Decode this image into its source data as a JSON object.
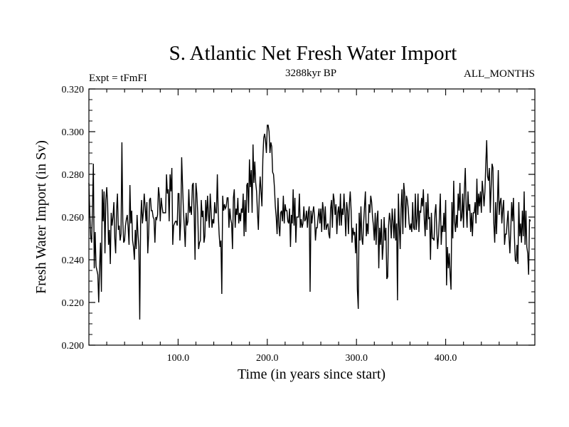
{
  "chart_data": {
    "type": "line",
    "title": "S. Atlantic Net Fresh Water Import",
    "subtitle": "3288kyr BP",
    "left_label": "Expt = tFmFI",
    "right_label": "ALL_MONTHS",
    "xlabel": "Time (in years since start)",
    "ylabel": "Fresh Water Import (in Sv)",
    "xlim": [
      0,
      500
    ],
    "ylim": [
      0.2,
      0.32
    ],
    "xticks": [
      100,
      200,
      300,
      400
    ],
    "xtick_labels": [
      "100.0",
      "200.0",
      "300.0",
      "400.0"
    ],
    "yticks": [
      0.2,
      0.22,
      0.24,
      0.26,
      0.28,
      0.3,
      0.32
    ],
    "ytick_labels": [
      "0.200",
      "0.220",
      "0.240",
      "0.260",
      "0.280",
      "0.300",
      "0.320"
    ],
    "series": [
      {
        "name": "Fresh Water Import",
        "x_start": 0,
        "x_step": 1,
        "values": [
          0.276,
          0.262,
          0.251,
          0.248,
          0.264,
          0.285,
          0.236,
          0.253,
          0.237,
          0.235,
          0.233,
          0.22,
          0.237,
          0.248,
          0.225,
          0.273,
          0.258,
          0.272,
          0.243,
          0.268,
          0.274,
          0.266,
          0.247,
          0.254,
          0.238,
          0.262,
          0.256,
          0.26,
          0.267,
          0.25,
          0.243,
          0.263,
          0.271,
          0.254,
          0.256,
          0.249,
          0.252,
          0.295,
          0.258,
          0.248,
          0.249,
          0.256,
          0.259,
          0.261,
          0.255,
          0.247,
          0.275,
          0.257,
          0.263,
          0.249,
          0.246,
          0.24,
          0.254,
          0.245,
          0.261,
          0.252,
          0.246,
          0.212,
          0.258,
          0.268,
          0.257,
          0.262,
          0.271,
          0.265,
          0.258,
          0.267,
          0.243,
          0.252,
          0.268,
          0.269,
          0.263,
          0.263,
          0.26,
          0.259,
          0.248,
          0.26,
          0.259,
          0.261,
          0.274,
          0.27,
          0.258,
          0.269,
          0.265,
          0.262,
          0.262,
          0.262,
          0.262,
          0.28,
          0.271,
          0.273,
          0.258,
          0.28,
          0.272,
          0.283,
          0.247,
          0.256,
          0.257,
          0.258,
          0.258,
          0.256,
          0.271,
          0.271,
          0.249,
          0.258,
          0.288,
          0.275,
          0.263,
          0.255,
          0.246,
          0.262,
          0.256,
          0.258,
          0.273,
          0.262,
          0.265,
          0.261,
          0.275,
          0.276,
          0.262,
          0.24,
          0.276,
          0.271,
          0.262,
          0.245,
          0.248,
          0.249,
          0.268,
          0.26,
          0.263,
          0.248,
          0.251,
          0.268,
          0.258,
          0.27,
          0.262,
          0.255,
          0.271,
          0.263,
          0.255,
          0.259,
          0.257,
          0.267,
          0.262,
          0.262,
          0.28,
          0.262,
          0.252,
          0.246,
          0.249,
          0.224,
          0.27,
          0.263,
          0.266,
          0.264,
          0.265,
          0.269,
          0.269,
          0.255,
          0.264,
          0.259,
          0.257,
          0.245,
          0.269,
          0.273,
          0.255,
          0.264,
          0.261,
          0.269,
          0.257,
          0.262,
          0.258,
          0.264,
          0.262,
          0.271,
          0.251,
          0.268,
          0.253,
          0.275,
          0.276,
          0.262,
          0.287,
          0.274,
          0.282,
          0.262,
          0.294,
          0.276,
          0.286,
          0.276,
          0.272,
          0.262,
          0.254,
          0.27,
          0.279,
          0.272,
          0.265,
          0.287,
          0.297,
          0.299,
          0.296,
          0.29,
          0.303,
          0.303,
          0.3,
          0.29,
          0.295,
          0.293,
          0.281,
          0.28,
          0.274,
          0.265,
          0.26,
          0.252,
          0.269,
          0.256,
          0.251,
          0.262,
          0.263,
          0.258,
          0.27,
          0.257,
          0.266,
          0.263,
          0.263,
          0.258,
          0.257,
          0.264,
          0.246,
          0.261,
          0.257,
          0.273,
          0.256,
          0.269,
          0.248,
          0.26,
          0.26,
          0.26,
          0.271,
          0.255,
          0.259,
          0.255,
          0.257,
          0.265,
          0.258,
          0.259,
          0.263,
          0.255,
          0.262,
          0.265,
          0.225,
          0.263,
          0.257,
          0.262,
          0.265,
          0.26,
          0.249,
          0.255,
          0.255,
          0.26,
          0.264,
          0.257,
          0.264,
          0.253,
          0.267,
          0.263,
          0.254,
          0.265,
          0.254,
          0.256,
          0.257,
          0.252,
          0.25,
          0.264,
          0.268,
          0.255,
          0.271,
          0.268,
          0.261,
          0.266,
          0.252,
          0.262,
          0.265,
          0.256,
          0.271,
          0.256,
          0.264,
          0.261,
          0.271,
          0.262,
          0.251,
          0.267,
          0.263,
          0.252,
          0.266,
          0.272,
          0.263,
          0.248,
          0.255,
          0.252,
          0.253,
          0.243,
          0.257,
          0.226,
          0.217,
          0.262,
          0.249,
          0.265,
          0.25,
          0.247,
          0.257,
          0.265,
          0.272,
          0.251,
          0.257,
          0.252,
          0.266,
          0.262,
          0.27,
          0.267,
          0.26,
          0.256,
          0.249,
          0.262,
          0.247,
          0.259,
          0.263,
          0.236,
          0.255,
          0.247,
          0.259,
          0.24,
          0.247,
          0.26,
          0.249,
          0.255,
          0.231,
          0.232,
          0.256,
          0.262,
          0.258,
          0.25,
          0.264,
          0.258,
          0.25,
          0.264,
          0.249,
          0.257,
          0.221,
          0.271,
          0.256,
          0.245,
          0.264,
          0.273,
          0.252,
          0.276,
          0.271,
          0.255,
          0.27,
          0.268,
          0.264,
          0.257,
          0.254,
          0.257,
          0.253,
          0.267,
          0.255,
          0.254,
          0.271,
          0.254,
          0.259,
          0.271,
          0.253,
          0.263,
          0.262,
          0.269,
          0.265,
          0.273,
          0.259,
          0.251,
          0.267,
          0.254,
          0.271,
          0.259,
          0.26,
          0.24,
          0.262,
          0.25,
          0.25,
          0.249,
          0.262,
          0.266,
          0.254,
          0.245,
          0.251,
          0.26,
          0.271,
          0.247,
          0.256,
          0.253,
          0.262,
          0.253,
          0.268,
          0.228,
          0.246,
          0.236,
          0.243,
          0.233,
          0.226,
          0.267,
          0.25,
          0.277,
          0.258,
          0.253,
          0.261,
          0.255,
          0.271,
          0.263,
          0.276,
          0.258,
          0.26,
          0.271,
          0.255,
          0.273,
          0.283,
          0.264,
          0.255,
          0.272,
          0.263,
          0.266,
          0.253,
          0.262,
          0.251,
          0.262,
          0.262,
          0.267,
          0.257,
          0.278,
          0.261,
          0.271,
          0.265,
          0.272,
          0.262,
          0.277,
          0.272,
          0.265,
          0.272,
          0.285,
          0.296,
          0.279,
          0.277,
          0.283,
          0.262,
          0.274,
          0.285,
          0.283,
          0.257,
          0.248,
          0.267,
          0.252,
          0.266,
          0.282,
          0.261,
          0.267,
          0.269,
          0.257,
          0.264,
          0.268,
          0.247,
          0.252,
          0.252,
          0.258,
          0.263,
          0.251,
          0.243,
          0.254,
          0.267,
          0.258,
          0.269,
          0.252,
          0.24,
          0.239,
          0.247,
          0.238,
          0.267,
          0.251,
          0.257,
          0.248,
          0.263,
          0.251,
          0.272,
          0.247,
          0.263,
          0.246,
          0.243,
          0.233,
          0.259,
          0.258
        ]
      }
    ]
  }
}
